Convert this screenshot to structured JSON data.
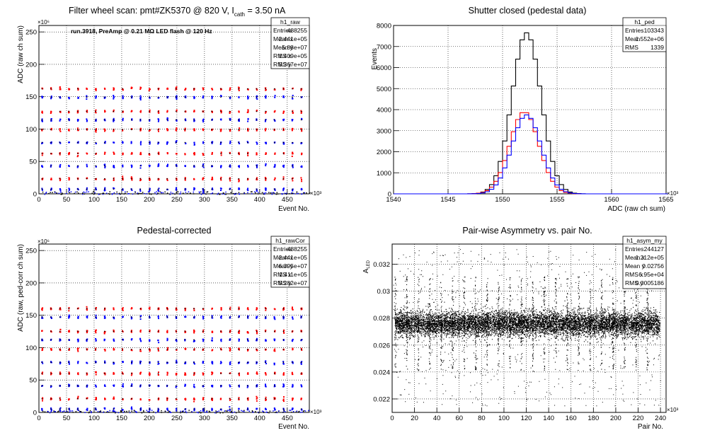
{
  "chart_data": [
    {
      "type": "scatter",
      "title": "Filter wheel scan: pmt#ZK5370 @   820 V, I",
      "title_sub": "cath",
      "title_tail": " = 3.50 nA",
      "annotation": "run.3918, PreAmp @ 0.21 MΩ LED flash @  120 Hz",
      "xlabel": "Event No.",
      "ylabel": "ADC (raw ch sum)",
      "x_exponent": "×10³",
      "y_exponent": "×10⁶",
      "xlim": [
        0,
        490
      ],
      "ylim": [
        0,
        260
      ],
      "xticks": [
        0,
        50,
        100,
        150,
        200,
        250,
        300,
        350,
        400,
        450
      ],
      "yticks": [
        0,
        50,
        100,
        150,
        200,
        250
      ],
      "grid": true,
      "levels": [
        163,
        150,
        128,
        115,
        100,
        80,
        63,
        44,
        24,
        8
      ],
      "stats": {
        "name": "h1_raw",
        "rows": [
          [
            "Entries",
            "488255"
          ],
          [
            "Mean x",
            "2.441e+05"
          ],
          [
            "Mean y",
            "5.88e+07"
          ],
          [
            "RMS x",
            "1.409e+05"
          ],
          [
            "RMS y",
            "5.367e+07"
          ]
        ]
      }
    },
    {
      "type": "line",
      "title": "Shutter closed (pedestal data)",
      "xlabel": "ADC (raw ch sum)",
      "ylabel": "Events",
      "x_exponent": "×10³",
      "xlim": [
        1540,
        1565
      ],
      "ylim": [
        0,
        8000
      ],
      "xticks": [
        1540,
        1545,
        1550,
        1555,
        1560,
        1565
      ],
      "yticks": [
        0,
        1000,
        2000,
        3000,
        4000,
        5000,
        6000,
        7000,
        8000
      ],
      "grid": true,
      "series": [
        {
          "color": "#000000",
          "peak": 7650,
          "center": 1552.2,
          "sigma": 1.34
        },
        {
          "color": "#ff0000",
          "peak": 3900,
          "center": 1552.0,
          "sigma": 1.34
        },
        {
          "color": "#0000ff",
          "peak": 3750,
          "center": 1552.2,
          "sigma": 1.34
        }
      ],
      "stats": {
        "name": "h1_ped",
        "rows": [
          [
            "Entries",
            "103343"
          ],
          [
            "Mean",
            "1.552e+06"
          ],
          [
            "RMS",
            "1339"
          ]
        ]
      }
    },
    {
      "type": "scatter",
      "title": "Pedestal-corrected",
      "xlabel": "Event No.",
      "ylabel": "ADC (raw, ped-corr ch sum)",
      "x_exponent": "×10³",
      "y_exponent": "×10⁶",
      "xlim": [
        0,
        490
      ],
      "ylim": [
        0,
        260
      ],
      "xticks": [
        0,
        50,
        100,
        150,
        200,
        250,
        300,
        350,
        400,
        450
      ],
      "yticks": [
        0,
        50,
        100,
        150,
        200,
        250
      ],
      "grid": true,
      "levels": [
        161,
        148,
        126,
        113,
        98,
        78,
        61,
        42,
        22,
        6
      ],
      "stats": {
        "name": "h1_rawCor",
        "rows": [
          [
            "Entries",
            "488255"
          ],
          [
            "Mean x",
            "2.441e+05"
          ],
          [
            "Mean y",
            "6.395e+07"
          ],
          [
            "RMS x",
            "1.411e+05"
          ],
          [
            "RMS y",
            "5.282e+07"
          ]
        ]
      }
    },
    {
      "type": "scatter",
      "title": "Pair-wise Asymmetry vs. pair No.",
      "xlabel": "Pair No.",
      "ylabel": "A",
      "ylabel_sub": "LED",
      "x_exponent": "×10³",
      "xlim": [
        0,
        245
      ],
      "ylim": [
        0.021,
        0.0335
      ],
      "xticks": [
        0,
        20,
        40,
        60,
        80,
        100,
        120,
        140,
        160,
        180,
        200,
        220,
        240
      ],
      "yticks": [
        0.022,
        0.024,
        0.026,
        0.028,
        0.03,
        0.032
      ],
      "grid": true,
      "band_center": 0.0276,
      "band_halfwidth": 0.0006,
      "stats": {
        "name": "h1_asym_my",
        "rows": [
          [
            "Entries",
            "244127"
          ],
          [
            "Mean x",
            "1.212e+05"
          ],
          [
            "Mean y",
            "0.02756"
          ],
          [
            "RMS x",
            "6.95e+04"
          ],
          [
            "RMS y",
            "0.0005186"
          ]
        ]
      }
    }
  ]
}
